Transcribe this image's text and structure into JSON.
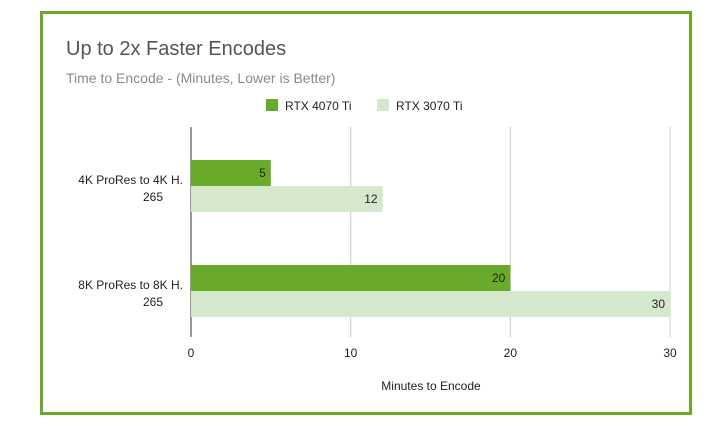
{
  "title": "Up to 2x Faster Encodes",
  "subtitle": "Time to Encode - (Minutes, Lower is Better)",
  "colors": {
    "frame": "#6aaa2a"
  },
  "chart_data": {
    "type": "bar",
    "orientation": "horizontal",
    "categories": [
      [
        "4K ProRes to 4K H.",
        "265"
      ],
      [
        "8K ProRes to 8K H.",
        "265"
      ]
    ],
    "series": [
      {
        "name": "RTX 4070 Ti",
        "color": "#6aaa2a",
        "values": [
          5,
          20
        ]
      },
      {
        "name": "RTX 3070 Ti",
        "color": "#d5e8cc",
        "values": [
          12,
          30
        ]
      }
    ],
    "xlabel": "Minutes to Encode",
    "ylabel": "",
    "xlim": [
      0,
      30
    ],
    "xticks": [
      0,
      10,
      20,
      30
    ],
    "grid": true,
    "legend": "top-center"
  }
}
